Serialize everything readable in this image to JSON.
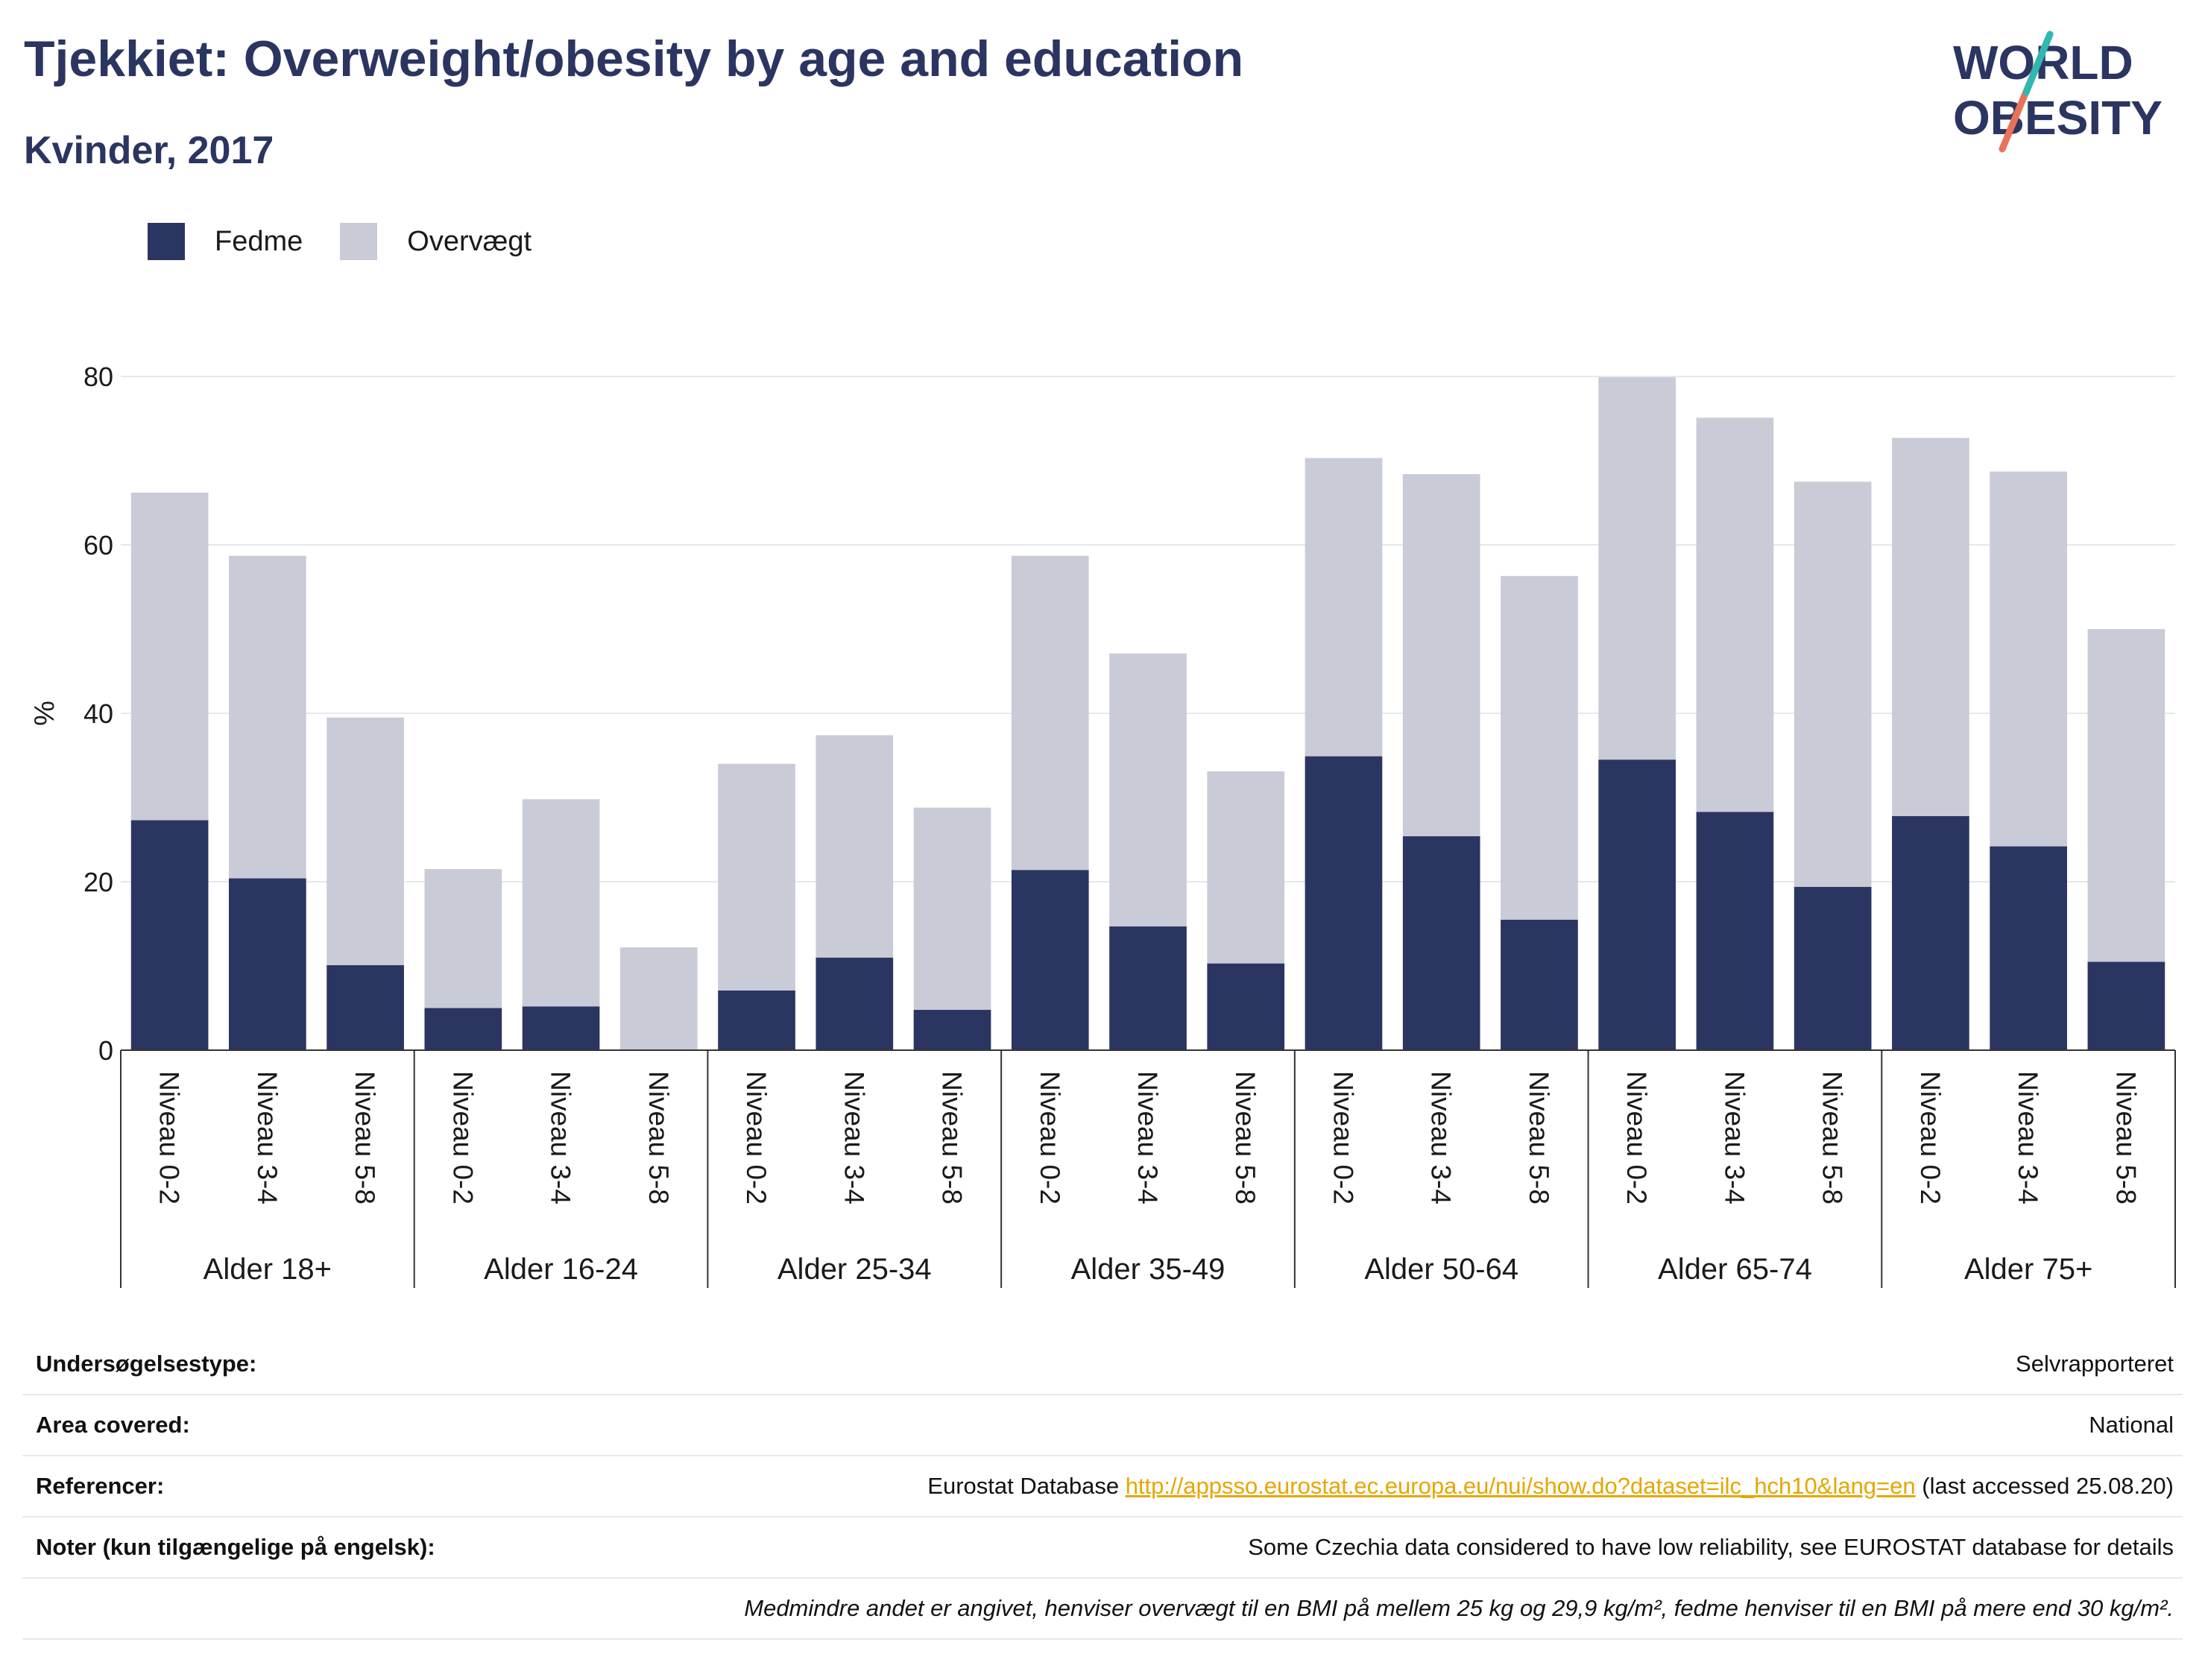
{
  "header": {
    "title": "Tjekkiet: Overweight/obesity by age and education",
    "subtitle": "Kvinder, 2017"
  },
  "logo": {
    "line1": "WORLD",
    "line2": "OBESITY"
  },
  "legend": [
    {
      "label": "Fedme",
      "color": "#2b3561"
    },
    {
      "label": "Overvægt",
      "color": "#c9cbd7"
    }
  ],
  "chart_data": {
    "type": "bar",
    "stacked": true,
    "ylabel": "%",
    "ylim": [
      0,
      80
    ],
    "yticks": [
      0,
      20,
      40,
      60,
      80
    ],
    "grid": true,
    "legend_position": "top-left",
    "groups": [
      "Alder 18+",
      "Alder 16-24",
      "Alder 25-34",
      "Alder 35-49",
      "Alder 50-64",
      "Alder 65-74",
      "Alder 75+"
    ],
    "subcategories": [
      "Niveau 0-2",
      "Niveau 3-4",
      "Niveau 5-8"
    ],
    "series": [
      {
        "name": "Fedme",
        "color": "#2b3561",
        "values": [
          27.3,
          20.4,
          10.1,
          5.0,
          5.2,
          0,
          7.1,
          11.0,
          4.8,
          21.4,
          14.7,
          10.3,
          34.9,
          25.4,
          15.5,
          34.5,
          28.3,
          19.4,
          27.8,
          24.2,
          10.5
        ]
      },
      {
        "name": "Overvægt",
        "color": "#c9cbd7",
        "values": [
          38.9,
          38.3,
          29.4,
          16.5,
          24.6,
          12.2,
          26.9,
          26.4,
          24.0,
          37.3,
          32.4,
          22.8,
          35.4,
          43.0,
          40.8,
          45.4,
          46.8,
          48.1,
          44.9,
          44.5,
          39.5
        ]
      }
    ]
  },
  "info": {
    "rows": [
      {
        "label": "Undersøgelsestype:",
        "value": "Selvrapporteret"
      },
      {
        "label": "Area covered:",
        "value": "National"
      }
    ],
    "references": {
      "label": "Referencer:",
      "prefix": "Eurostat Database ",
      "link": "http://appsso.eurostat.ec.europa.eu/nui/show.do?dataset=ilc_hch10&lang=en",
      "suffix": " (last accessed 25.08.20)"
    },
    "notes": {
      "label": "Noter (kun tilgængelige på engelsk):",
      "value": "Some Czechia data considered to have low reliability, see EUROSTAT database for details"
    },
    "footnote": "Medmindre andet er angivet, henviser overvægt til en BMI på mellem 25 kg og 29,9 kg/m², fedme henviser til en BMI på mere end 30 kg/m²."
  }
}
